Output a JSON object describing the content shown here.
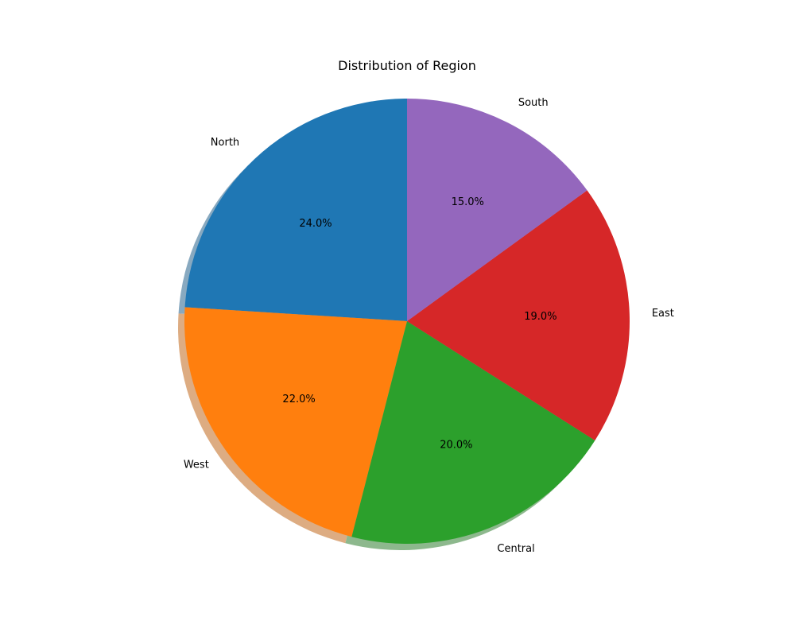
{
  "chart_data": {
    "type": "pie",
    "title": "Distribution of Region",
    "categories": [
      "North",
      "West",
      "Central",
      "East",
      "South"
    ],
    "values": [
      24.0,
      22.0,
      20.0,
      19.0,
      15.0
    ],
    "value_labels": [
      "24.0%",
      "22.0%",
      "20.0%",
      "19.0%",
      "15.0%"
    ],
    "colors": [
      "#1f77b4",
      "#ff7f0e",
      "#2ca02c",
      "#d62728",
      "#9467bd"
    ],
    "start_angle_deg": 90,
    "direction": "counterclockwise",
    "shadow": true,
    "legend": "none"
  }
}
